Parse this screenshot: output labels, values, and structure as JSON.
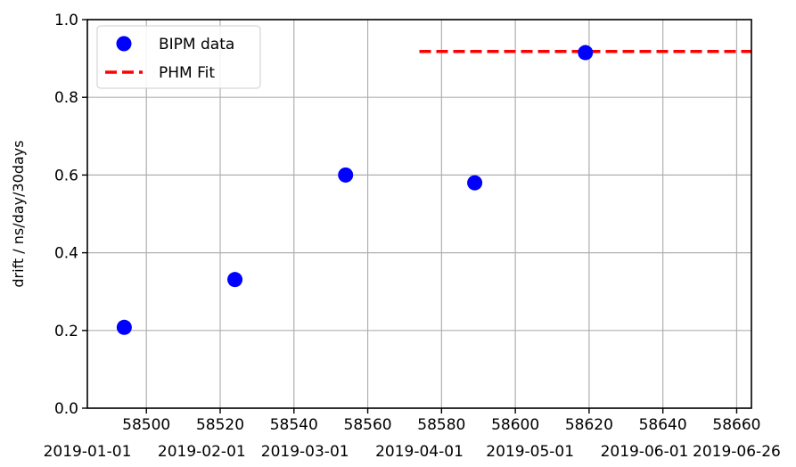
{
  "chart_data": {
    "type": "scatter",
    "title": "",
    "xlabel": "",
    "ylabel": "drift / ns/day/30days",
    "xlim": [
      58484,
      58664
    ],
    "ylim": [
      0.0,
      1.0
    ],
    "grid": true,
    "legend_position": "top-left",
    "x_ticks": [
      58500,
      58520,
      58540,
      58560,
      58580,
      58600,
      58620,
      58640,
      58660
    ],
    "y_ticks": [
      0.0,
      0.2,
      0.4,
      0.6,
      0.8,
      1.0
    ],
    "y_tick_labels": [
      "0.0",
      "0.2",
      "0.4",
      "0.6",
      "0.8",
      "1.0"
    ],
    "secondary_x_ticks": [
      {
        "x": 58484,
        "label": "2019-01-01"
      },
      {
        "x": 58515,
        "label": "2019-02-01"
      },
      {
        "x": 58543,
        "label": "2019-03-01"
      },
      {
        "x": 58574,
        "label": "2019-04-01"
      },
      {
        "x": 58604,
        "label": "2019-05-01"
      },
      {
        "x": 58635,
        "label": "2019-06-01"
      },
      {
        "x": 58660,
        "label": "2019-06-26"
      }
    ],
    "series": [
      {
        "name": "BIPM data",
        "kind": "scatter",
        "color": "#0000ff",
        "points": [
          {
            "x": 58494,
            "y": 0.208
          },
          {
            "x": 58524,
            "y": 0.331
          },
          {
            "x": 58554,
            "y": 0.6
          },
          {
            "x": 58589,
            "y": 0.58
          },
          {
            "x": 58619,
            "y": 0.915
          }
        ]
      },
      {
        "name": "PHM Fit",
        "kind": "dashed-line",
        "color": "#ff0000",
        "points": [
          {
            "x": 58574,
            "y": 0.918
          },
          {
            "x": 58664,
            "y": 0.918
          }
        ]
      }
    ]
  }
}
